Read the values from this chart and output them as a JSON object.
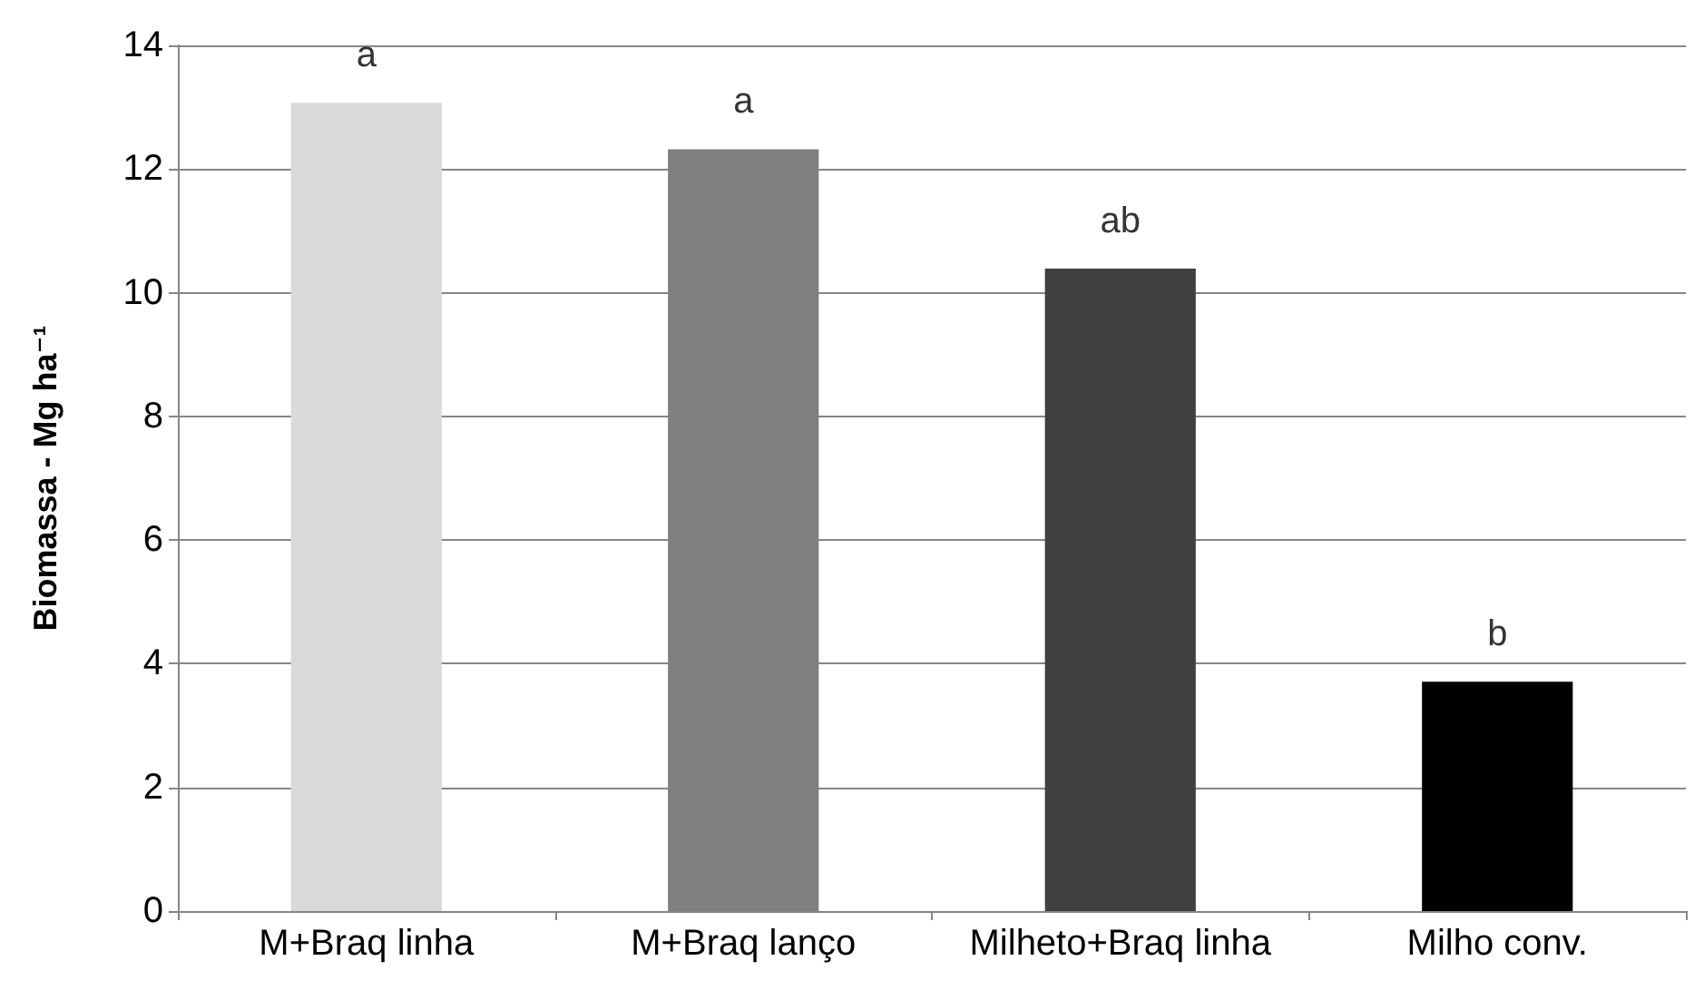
{
  "chart_data": {
    "type": "bar",
    "ylabel": "Biomassa - Mg ha⁻¹",
    "categories": [
      "M+Braq linha",
      "M+Braq lanço",
      "Milheto+Braq linha",
      "Milho conv."
    ],
    "values": [
      13.07,
      12.32,
      10.39,
      3.71
    ],
    "colors": [
      "#d9d9d9",
      "#7f7f7f",
      "#404040",
      "#000000"
    ],
    "ylim": [
      0,
      14
    ],
    "yticks": [
      0,
      2,
      4,
      6,
      8,
      10,
      12,
      14
    ],
    "grid": "y",
    "annotations": [
      {
        "text": "a",
        "x": "M+Braq linha",
        "y": 13.07
      },
      {
        "text": "a",
        "x": "M+Braq lanço",
        "y": 12.32
      },
      {
        "text": "ab",
        "x": "Milheto+Braq linha",
        "y": 10.39
      },
      {
        "text": "b",
        "x": "Milho conv.",
        "y": 3.71
      }
    ]
  }
}
